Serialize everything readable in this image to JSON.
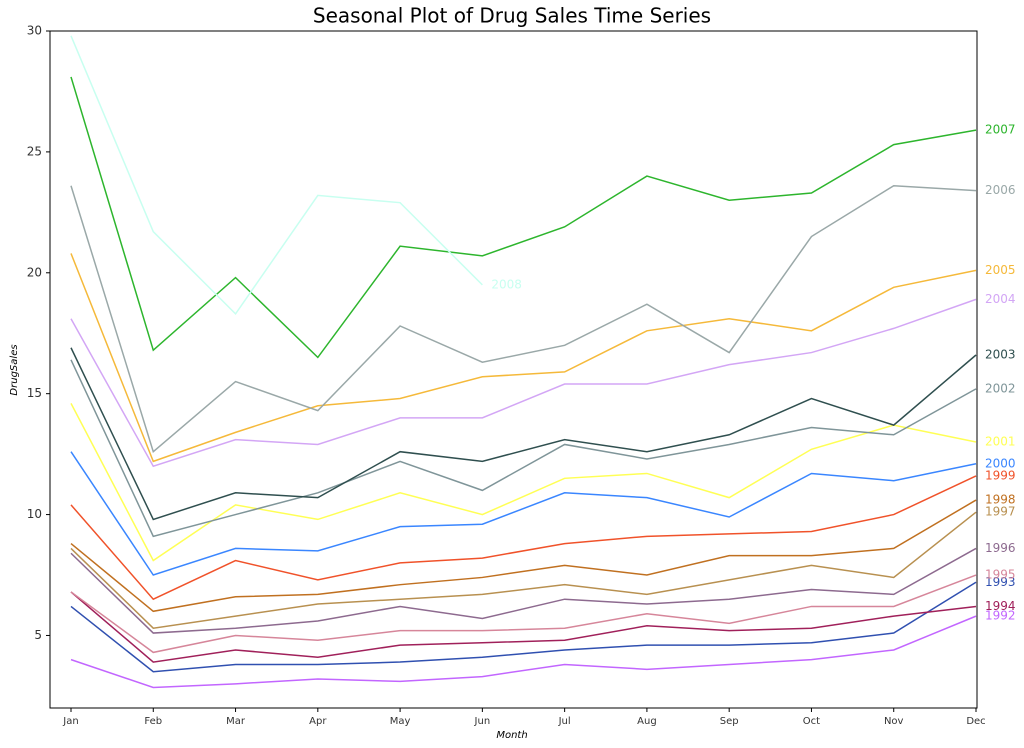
{
  "chart_data": {
    "type": "line",
    "title": "Seasonal Plot of Drug Sales Time Series",
    "x_label": "Month",
    "y_label": "DrugSales",
    "categories": [
      "Jan",
      "Feb",
      "Mar",
      "Apr",
      "May",
      "Jun",
      "Jul",
      "Aug",
      "Sep",
      "Oct",
      "Nov",
      "Dec"
    ],
    "ylim": [
      2,
      30
    ],
    "yticks": [
      5,
      10,
      15,
      20,
      25,
      30
    ],
    "series": [
      {
        "name": "1992",
        "color": "#c266ff",
        "values": [
          4.0,
          2.85,
          3.0,
          3.2,
          3.1,
          3.3,
          3.8,
          3.6,
          3.8,
          4.0,
          4.4,
          5.8
        ]
      },
      {
        "name": "1993",
        "color": "#3050b0",
        "values": [
          6.2,
          3.5,
          3.8,
          3.8,
          3.9,
          4.1,
          4.4,
          4.6,
          4.6,
          4.7,
          5.1,
          7.2
        ]
      },
      {
        "name": "1994",
        "color": "#a0205a",
        "values": [
          6.8,
          3.9,
          4.4,
          4.1,
          4.6,
          4.7,
          4.8,
          5.4,
          5.2,
          5.3,
          5.8,
          6.2
        ]
      },
      {
        "name": "1995",
        "color": "#d6869a",
        "values": [
          6.8,
          4.3,
          5.0,
          4.8,
          5.2,
          5.2,
          5.3,
          5.9,
          5.5,
          6.2,
          6.2,
          7.5
        ]
      },
      {
        "name": "1996",
        "color": "#8d6a8f",
        "values": [
          8.4,
          5.1,
          5.3,
          5.6,
          6.2,
          5.7,
          6.5,
          6.3,
          6.5,
          6.9,
          6.7,
          8.6
        ]
      },
      {
        "name": "1997",
        "color": "#b89050",
        "values": [
          8.6,
          5.3,
          5.8,
          6.3,
          6.5,
          6.7,
          7.1,
          6.7,
          7.3,
          7.9,
          7.4,
          10.1
        ]
      },
      {
        "name": "1998",
        "color": "#c07020",
        "values": [
          8.8,
          6.0,
          6.6,
          6.7,
          7.1,
          7.4,
          7.9,
          7.5,
          8.3,
          8.3,
          8.6,
          10.6
        ]
      },
      {
        "name": "1999",
        "color": "#f0522a",
        "values": [
          10.4,
          6.5,
          8.1,
          7.3,
          8.0,
          8.2,
          8.8,
          9.1,
          9.2,
          9.3,
          10.0,
          11.6
        ]
      },
      {
        "name": "2000",
        "color": "#3a86ff",
        "values": [
          12.6,
          7.5,
          8.6,
          8.5,
          9.5,
          9.6,
          10.9,
          10.7,
          9.9,
          11.7,
          11.4,
          12.1
        ]
      },
      {
        "name": "2001",
        "color": "#ffff55",
        "values": [
          14.6,
          8.1,
          10.4,
          9.8,
          10.9,
          10.0,
          11.5,
          11.7,
          10.7,
          12.7,
          13.7,
          13.0
        ]
      },
      {
        "name": "2002",
        "color": "#7f9599",
        "values": [
          16.4,
          9.1,
          10.0,
          10.9,
          12.2,
          11.0,
          12.9,
          12.3,
          12.9,
          13.6,
          13.3,
          15.2
        ]
      },
      {
        "name": "2003",
        "color": "#2f4f4f",
        "values": [
          16.9,
          9.8,
          10.9,
          10.7,
          12.6,
          12.2,
          13.1,
          12.6,
          13.3,
          14.8,
          13.7,
          16.6
        ]
      },
      {
        "name": "2004",
        "color": "#d3a6f5",
        "values": [
          18.1,
          12.0,
          13.1,
          12.9,
          14.0,
          14.0,
          15.4,
          15.4,
          16.2,
          16.7,
          17.7,
          18.9
        ]
      },
      {
        "name": "2005",
        "color": "#f5b93a",
        "values": [
          20.8,
          12.2,
          13.4,
          14.5,
          14.8,
          15.7,
          15.9,
          17.6,
          18.1,
          17.6,
          19.4,
          20.1
        ]
      },
      {
        "name": "2006",
        "color": "#9aa8a8",
        "values": [
          23.6,
          12.6,
          15.5,
          14.3,
          17.8,
          16.3,
          17.0,
          18.7,
          16.7,
          21.5,
          23.6,
          23.4
        ]
      },
      {
        "name": "2007",
        "color": "#2db52d",
        "values": [
          28.1,
          16.8,
          19.8,
          16.5,
          21.1,
          20.7,
          21.9,
          24.0,
          23.0,
          23.3,
          25.3,
          25.9
        ]
      },
      {
        "name": "2008",
        "color": "#c8fff0",
        "values": [
          29.8,
          21.7,
          18.3,
          23.2,
          22.9,
          19.5,
          null,
          null,
          null,
          null,
          null,
          null
        ]
      }
    ]
  }
}
